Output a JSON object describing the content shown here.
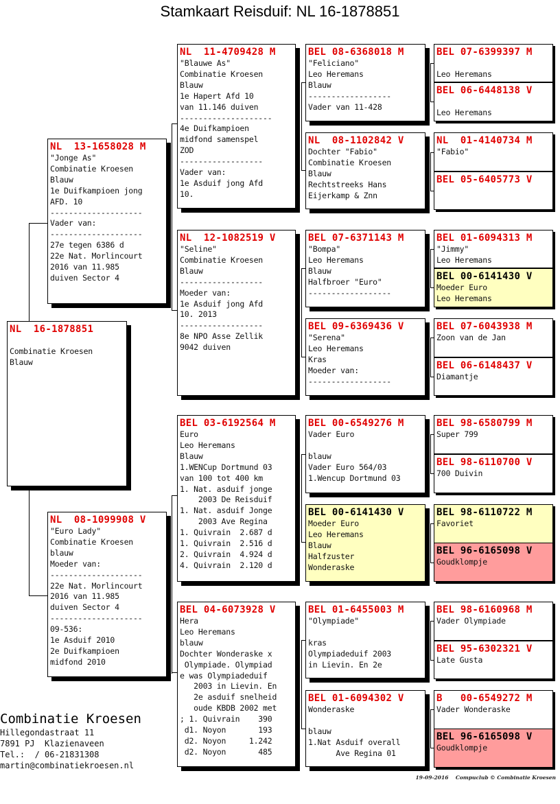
{
  "title": "Stamkaart Reisduif: NL  16-1878851",
  "colors": {
    "ring": "#e00000",
    "highlight_yellow": "#ffffc0",
    "highlight_pink": "#ff9c9c"
  },
  "boxes": [
    {
      "ring": "NL  16-1878851",
      "lines": [
        "",
        "Combinatie Kroesen",
        "Blauw"
      ]
    },
    {
      "ring": "NL  13-1658028 M",
      "lines": [
        "\"Jonge As\"",
        "Combinatie Kroesen",
        "Blauw",
        "1e Duifkampioen jong",
        "AFD. 10",
        "--------------------",
        "Vader van:",
        "--------------------",
        "27e tegen 6386 d",
        "22e Nat. Morlincourt",
        "2016 van 11.985",
        "duiven Sector 4"
      ]
    },
    {
      "ring": "NL  08-1099908 V",
      "lines": [
        "\"Euro Lady\"",
        "Combinatie Kroesen",
        "blauw",
        "Moeder van:",
        "--------------------",
        "22e Nat. Morlincourt",
        "2016 van 11.985",
        "duiven Sector 4",
        "--------------------",
        "09-536:",
        "1e Asduif 2010",
        "2e Duifkampioen",
        "midfond 2010"
      ]
    },
    {
      "ring": "NL  11-4709428 M",
      "lines": [
        "\"Blauwe As\"",
        "Combinatie Kroesen",
        "Blauw",
        "1e Hapert Afd 10",
        "van 11.146 duiven",
        "--------------------",
        "4e Duifkampioen",
        "midfond samenspel",
        "ZOD",
        "------------------",
        "Vader van:",
        "1e Asduif jong Afd",
        "10."
      ]
    },
    {
      "ring": "NL  12-1082519 V",
      "lines": [
        "\"Seline\"",
        "Combinatie Kroesen",
        "Blauw",
        "------------------",
        "Moeder van:",
        "1e Asduif jong Afd",
        "10. 2013",
        "------------------",
        "8e NPO Asse Zellik",
        "9042 duiven"
      ]
    },
    {
      "ring": "BEL 03-6192564 M",
      "lines": [
        "Euro",
        "Leo Heremans",
        "Blauw",
        "1.WENCup Dortmund 03",
        "van 100 tot 400 km",
        "1. Nat. asduif jonge",
        "    2003 De Reisduif",
        "1. Nat. asduif Jonge",
        "    2003 Ave Regina",
        "1. Quivrain  2.687 d",
        "1. Quivrain  2.516 d",
        "2. Quivrain  4.924 d",
        "4. Quivrain  2.120 d"
      ]
    },
    {
      "ring": "BEL 04-6073928 V",
      "lines": [
        "Hera",
        "Leo Heremans",
        "blauw",
        "Dochter Wonderaske x",
        " Olympiade. Olympiad",
        "e was Olympiadeduif",
        "   2003 in Lievin. En",
        "   2e asduif snelheid",
        "   oude KBDB 2002 met",
        "; 1. Quivrain    390",
        " d1. Noyon       193",
        " d2. Noyon     1.242",
        " d2. Noyon       485"
      ]
    },
    {
      "ring": "BEL 08-6368018 M",
      "lines": [
        "\"Feliciano\"",
        "Leo Heremans",
        "Blauw",
        "------------------",
        "Vader van 11-428"
      ]
    },
    {
      "ring": "NL  08-1102842 V",
      "lines": [
        "Dochter \"Fabio\"",
        "Combinatie Kroesen",
        "Blauw",
        "Rechtstreeks Hans",
        "Eijerkamp & Znn"
      ]
    },
    {
      "ring": "BEL 07-6371143 M",
      "lines": [
        "\"Bompa\"",
        "Leo Heremans",
        "Blauw",
        "Halfbroer \"Euro\"",
        "------------------"
      ]
    },
    {
      "ring": "BEL 09-6369436 V",
      "lines": [
        "\"Serena\"",
        "Leo Heremans",
        "Kras",
        "Moeder van:",
        "------------------"
      ]
    },
    {
      "ring": "BEL 00-6549276 M",
      "lines": [
        "Vader Euro",
        "",
        "blauw",
        "Vader Euro 564/03",
        "1.Wencup Dortmund 03"
      ]
    },
    {
      "ring": "BEL 00-6141430 V",
      "ring_black": true,
      "bg": "yellow",
      "lines": [
        "Moeder Euro",
        "Leo Heremans",
        "Blauw",
        "Halfzuster",
        "Wonderaske"
      ]
    },
    {
      "ring": "BEL 01-6455003 M",
      "lines": [
        "\"Olympiade\"",
        "",
        "kras",
        "Olympiadeduif 2003",
        "in Lievin. En 2e"
      ]
    },
    {
      "ring": "BEL 01-6094302 V",
      "lines": [
        "Wonderaske",
        "",
        "blauw",
        "1.Nat Asduif overall",
        "      Ave Regina 01"
      ]
    },
    {
      "ring": "BEL 07-6399397 M",
      "lines": [
        "",
        "Leo Heremans"
      ]
    },
    {
      "ring": "BEL 06-6448138 V",
      "lines": [
        "",
        "Leo Heremans"
      ]
    },
    {
      "ring": "NL  01-4140734 M",
      "lines": [
        "\"Fabio\""
      ]
    },
    {
      "ring": "BEL 05-6405773 V",
      "lines": []
    },
    {
      "ring": "BEL 01-6094313 M",
      "lines": [
        "\"Jimmy\"",
        "Leo Heremans"
      ]
    },
    {
      "ring": "BEL 00-6141430 V",
      "ring_black": true,
      "bg": "yellow",
      "lines": [
        "Moeder Euro",
        "Leo Heremans"
      ]
    },
    {
      "ring": "BEL 07-6043938 M",
      "lines": [
        "Zoon van de Jan"
      ]
    },
    {
      "ring": "BEL 06-6148437 V",
      "lines": [
        "Diamantje"
      ]
    },
    {
      "ring": "BEL 98-6580799 M",
      "lines": [
        "Super 799"
      ]
    },
    {
      "ring": "BEL 98-6110700 V",
      "lines": [
        "700 Duivin"
      ]
    },
    {
      "ring": "BEL 98-6110722 M",
      "ring_black": true,
      "bg": "yellow",
      "lines": [
        "Favoriet"
      ]
    },
    {
      "ring": "BEL 96-6165098 V",
      "ring_black": true,
      "bg": "pink",
      "lines": [
        "Goudklompje"
      ]
    },
    {
      "ring": "BEL 98-6160968 M",
      "lines": [
        "Vader Olympiade"
      ]
    },
    {
      "ring": "BEL 95-6302321 V",
      "lines": [
        "Late Gusta"
      ]
    },
    {
      "ring": "B   00-6549272 M",
      "lines": [
        "Vader Wonderaske"
      ]
    },
    {
      "ring": "BEL 96-6165098 V",
      "ring_black": true,
      "bg": "pink",
      "lines": [
        "Goudklompje"
      ]
    }
  ],
  "owner": {
    "name": "Combinatie Kroesen",
    "address": "Hillegondastraat 11",
    "city": "7891 PJ  Klazienaveen",
    "phone": "Tel.:  / 06-21831308",
    "email": "martin@combinatiekroesen.nl"
  },
  "footer": "19-09-2016    Compuclub © Combinatie Kroesen"
}
